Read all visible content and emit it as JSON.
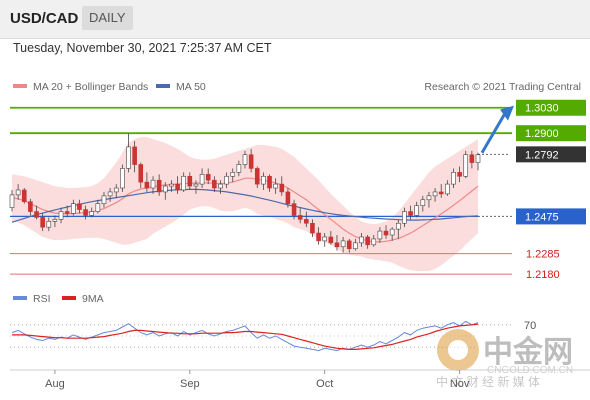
{
  "header": {
    "pair": "USD/CAD",
    "timeframe": "DAILY"
  },
  "timestamp": "Tuesday, November 30, 2021 7:25:37 AM CET",
  "legend": {
    "ma20_label": "MA 20 + Bollinger Bands",
    "ma50_label": "MA 50"
  },
  "copyright": "Research © 2021 Trading Central",
  "rsi_legend": {
    "rsi_label": "RSI",
    "ma_label": "9MA"
  },
  "watermark": {
    "big": "中金网",
    "small": "中 文 财 经 新 媒 体",
    "url": "CNGOLD.COM.CN"
  },
  "colors": {
    "resistance": "#55aa00",
    "pivot": "#2a62cc",
    "support": "#e07070",
    "current": "#333333",
    "candle": "#cc3333",
    "ma20": "#ee8888",
    "band": "#fbd7d7",
    "ma50": "#4a6aaa",
    "rsi": "#6688dd",
    "rsi_ma": "#dd2222",
    "arrow": "#3377cc"
  },
  "chart_data": {
    "type": "candlestick",
    "x_tick_labels": [
      "Aug",
      "Sep",
      "Oct",
      "Nov"
    ],
    "ylim": [
      1.214,
      1.309
    ],
    "levels": [
      {
        "value": 1.303,
        "label": "1.3030",
        "kind": "resistance"
      },
      {
        "value": 1.29,
        "label": "1.2900",
        "kind": "resistance"
      },
      {
        "value": 1.2792,
        "label": "1.2792",
        "kind": "current"
      },
      {
        "value": 1.2475,
        "label": "1.2475",
        "kind": "pivot"
      },
      {
        "value": 1.2285,
        "label": "1.2285",
        "kind": "support"
      },
      {
        "value": 1.218,
        "label": "1.2180",
        "kind": "support"
      }
    ],
    "ohlc": [
      [
        1.252,
        1.261,
        1.25,
        1.2585
      ],
      [
        1.2585,
        1.264,
        1.256,
        1.261
      ],
      [
        1.261,
        1.262,
        1.254,
        1.255
      ],
      [
        1.255,
        1.2565,
        1.248,
        1.25
      ],
      [
        1.25,
        1.253,
        1.246,
        1.247
      ],
      [
        1.247,
        1.249,
        1.24,
        1.242
      ],
      [
        1.242,
        1.247,
        1.24,
        1.245
      ],
      [
        1.245,
        1.248,
        1.242,
        1.246
      ],
      [
        1.246,
        1.252,
        1.244,
        1.25
      ],
      [
        1.25,
        1.253,
        1.247,
        1.249
      ],
      [
        1.249,
        1.256,
        1.248,
        1.254
      ],
      [
        1.254,
        1.256,
        1.249,
        1.251
      ],
      [
        1.251,
        1.253,
        1.246,
        1.248
      ],
      [
        1.248,
        1.252,
        1.247,
        1.25
      ],
      [
        1.25,
        1.256,
        1.249,
        1.254
      ],
      [
        1.254,
        1.26,
        1.252,
        1.258
      ],
      [
        1.258,
        1.262,
        1.255,
        1.26
      ],
      [
        1.26,
        1.264,
        1.257,
        1.262
      ],
      [
        1.262,
        1.274,
        1.26,
        1.272
      ],
      [
        1.272,
        1.29,
        1.27,
        1.283
      ],
      [
        1.283,
        1.286,
        1.27,
        1.274
      ],
      [
        1.274,
        1.275,
        1.262,
        1.265
      ],
      [
        1.265,
        1.27,
        1.26,
        1.262
      ],
      [
        1.262,
        1.268,
        1.259,
        1.266
      ],
      [
        1.266,
        1.269,
        1.258,
        1.26
      ],
      [
        1.26,
        1.265,
        1.256,
        1.263
      ],
      [
        1.263,
        1.266,
        1.26,
        1.264
      ],
      [
        1.264,
        1.268,
        1.259,
        1.261
      ],
      [
        1.261,
        1.27,
        1.26,
        1.268
      ],
      [
        1.268,
        1.27,
        1.261,
        1.263
      ],
      [
        1.263,
        1.266,
        1.259,
        1.264
      ],
      [
        1.264,
        1.272,
        1.262,
        1.269
      ],
      [
        1.269,
        1.272,
        1.264,
        1.266
      ],
      [
        1.266,
        1.268,
        1.26,
        1.262
      ],
      [
        1.262,
        1.266,
        1.259,
        1.264
      ],
      [
        1.264,
        1.27,
        1.262,
        1.268
      ],
      [
        1.268,
        1.272,
        1.265,
        1.27
      ],
      [
        1.27,
        1.276,
        1.268,
        1.274
      ],
      [
        1.274,
        1.281,
        1.272,
        1.279
      ],
      [
        1.279,
        1.282,
        1.27,
        1.272
      ],
      [
        1.272,
        1.273,
        1.262,
        1.264
      ],
      [
        1.264,
        1.27,
        1.261,
        1.268
      ],
      [
        1.268,
        1.269,
        1.26,
        1.262
      ],
      [
        1.262,
        1.267,
        1.259,
        1.264
      ],
      [
        1.264,
        1.268,
        1.258,
        1.26
      ],
      [
        1.26,
        1.262,
        1.252,
        1.254
      ],
      [
        1.254,
        1.256,
        1.246,
        1.248
      ],
      [
        1.248,
        1.252,
        1.244,
        1.246
      ],
      [
        1.246,
        1.25,
        1.242,
        1.244
      ],
      [
        1.244,
        1.246,
        1.237,
        1.239
      ],
      [
        1.239,
        1.242,
        1.233,
        1.235
      ],
      [
        1.235,
        1.239,
        1.232,
        1.237
      ],
      [
        1.237,
        1.24,
        1.233,
        1.234
      ],
      [
        1.234,
        1.238,
        1.23,
        1.232
      ],
      [
        1.232,
        1.237,
        1.229,
        1.235
      ],
      [
        1.235,
        1.236,
        1.229,
        1.231
      ],
      [
        1.231,
        1.236,
        1.23,
        1.234
      ],
      [
        1.234,
        1.239,
        1.232,
        1.237
      ],
      [
        1.237,
        1.238,
        1.231,
        1.233
      ],
      [
        1.233,
        1.238,
        1.232,
        1.236
      ],
      [
        1.236,
        1.242,
        1.234,
        1.24
      ],
      [
        1.24,
        1.243,
        1.236,
        1.238
      ],
      [
        1.238,
        1.242,
        1.235,
        1.241
      ],
      [
        1.241,
        1.246,
        1.236,
        1.244
      ],
      [
        1.244,
        1.252,
        1.242,
        1.25
      ],
      [
        1.25,
        1.253,
        1.246,
        1.248
      ],
      [
        1.248,
        1.255,
        1.247,
        1.253
      ],
      [
        1.253,
        1.258,
        1.25,
        1.256
      ],
      [
        1.256,
        1.26,
        1.252,
        1.258
      ],
      [
        1.258,
        1.262,
        1.255,
        1.26
      ],
      [
        1.26,
        1.264,
        1.257,
        1.259
      ],
      [
        1.259,
        1.266,
        1.258,
        1.264
      ],
      [
        1.264,
        1.272,
        1.262,
        1.27
      ],
      [
        1.27,
        1.273,
        1.265,
        1.268
      ],
      [
        1.268,
        1.281,
        1.267,
        1.279
      ],
      [
        1.279,
        1.281,
        1.272,
        1.275
      ],
      [
        1.275,
        1.28,
        1.271,
        1.279
      ]
    ],
    "ma20": [
      1.257,
      1.2565,
      1.2555,
      1.254,
      1.2525,
      1.251,
      1.25,
      1.2492,
      1.249,
      1.2488,
      1.249,
      1.2492,
      1.2495,
      1.2498,
      1.2505,
      1.2515,
      1.253,
      1.2545,
      1.2565,
      1.259,
      1.2605,
      1.2615,
      1.262,
      1.2628,
      1.2632,
      1.2636,
      1.2638,
      1.264,
      1.2642,
      1.2645,
      1.2645,
      1.2646,
      1.2646,
      1.2644,
      1.2642,
      1.2645,
      1.265,
      1.266,
      1.267,
      1.267,
      1.2664,
      1.266,
      1.2654,
      1.2646,
      1.2636,
      1.262,
      1.26,
      1.258,
      1.256,
      1.2535,
      1.251,
      1.2485,
      1.246,
      1.2435,
      1.241,
      1.239,
      1.2372,
      1.236,
      1.235,
      1.2345,
      1.2345,
      1.2348,
      1.2354,
      1.2362,
      1.2375,
      1.239,
      1.2408,
      1.2428,
      1.2448,
      1.2468,
      1.2488,
      1.251,
      1.2532,
      1.2555,
      1.258,
      1.2605,
      1.263
    ],
    "bb_upper": [
      1.269,
      1.2685,
      1.268,
      1.267,
      1.266,
      1.265,
      1.264,
      1.263,
      1.2625,
      1.262,
      1.262,
      1.2622,
      1.2625,
      1.263,
      1.2645,
      1.267,
      1.271,
      1.275,
      1.28,
      1.285,
      1.287,
      1.288,
      1.288,
      1.287,
      1.286,
      1.285,
      1.2835,
      1.282,
      1.28,
      1.278,
      1.277,
      1.2765,
      1.2765,
      1.277,
      1.278,
      1.279,
      1.28,
      1.281,
      1.282,
      1.283,
      1.284,
      1.284,
      1.2835,
      1.283,
      1.282,
      1.28,
      1.278,
      1.275,
      1.272,
      1.269,
      1.266,
      1.2625,
      1.259,
      1.256,
      1.253,
      1.25,
      1.247,
      1.245,
      1.244,
      1.2435,
      1.244,
      1.245,
      1.247,
      1.25,
      1.254,
      1.258,
      1.262,
      1.266,
      1.27,
      1.273,
      1.275,
      1.277,
      1.279,
      1.281,
      1.283,
      1.285,
      1.287
    ],
    "bb_lower": [
      1.245,
      1.2445,
      1.243,
      1.241,
      1.239,
      1.237,
      1.236,
      1.2354,
      1.2355,
      1.2356,
      1.236,
      1.2362,
      1.2365,
      1.2366,
      1.2365,
      1.236,
      1.235,
      1.234,
      1.233,
      1.233,
      1.234,
      1.235,
      1.236,
      1.2386,
      1.2404,
      1.2422,
      1.2441,
      1.246,
      1.2484,
      1.251,
      1.252,
      1.2527,
      1.2527,
      1.2518,
      1.2504,
      1.25,
      1.25,
      1.251,
      1.252,
      1.251,
      1.2488,
      1.248,
      1.2473,
      1.2462,
      1.2452,
      1.244,
      1.242,
      1.241,
      1.24,
      1.238,
      1.236,
      1.2345,
      1.233,
      1.231,
      1.229,
      1.228,
      1.2274,
      1.227,
      1.226,
      1.2255,
      1.225,
      1.2246,
      1.2238,
      1.2224,
      1.221,
      1.22,
      1.2196,
      1.2196,
      1.2196,
      1.2206,
      1.2226,
      1.225,
      1.2274,
      1.23,
      1.233,
      1.236,
      1.239
    ],
    "ma50": [
      1.2445,
      1.2455,
      1.2465,
      1.2475,
      1.2484,
      1.2492,
      1.25,
      1.2508,
      1.2516,
      1.2523,
      1.253,
      1.2537,
      1.2544,
      1.255,
      1.2556,
      1.2561,
      1.2566,
      1.2571,
      1.2576,
      1.2581,
      1.2586,
      1.2591,
      1.2596,
      1.26,
      1.2604,
      1.2607,
      1.2609,
      1.2611,
      1.2612,
      1.2613,
      1.2613,
      1.2612,
      1.261,
      1.2607,
      1.2604,
      1.26,
      1.2595,
      1.259,
      1.2585,
      1.2579,
      1.2572,
      1.2565,
      1.2558,
      1.255,
      1.2542,
      1.2534,
      1.2527,
      1.252,
      1.2513,
      1.2506,
      1.25,
      1.2494,
      1.2489,
      1.2484,
      1.248,
      1.2477,
      1.2474,
      1.2471,
      1.2468,
      1.2466,
      1.2464,
      1.2462,
      1.246,
      1.2458,
      1.2457,
      1.2456,
      1.2456,
      1.2457,
      1.2458,
      1.246,
      1.2462,
      1.2465,
      1.2468,
      1.2471,
      1.2474,
      1.2476,
      1.2478
    ],
    "rsi": {
      "ylim": [
        0,
        100
      ],
      "level_label": "70",
      "rsi": [
        56,
        60,
        54,
        48,
        44,
        42,
        46,
        44,
        48,
        46,
        52,
        48,
        44,
        48,
        52,
        56,
        58,
        60,
        66,
        72,
        64,
        56,
        52,
        56,
        50,
        54,
        56,
        50,
        58,
        52,
        56,
        60,
        54,
        50,
        54,
        58,
        60,
        64,
        68,
        56,
        46,
        52,
        46,
        50,
        44,
        38,
        32,
        30,
        28,
        26,
        24,
        28,
        26,
        24,
        28,
        26,
        30,
        34,
        30,
        34,
        40,
        36,
        42,
        48,
        56,
        52,
        60,
        64,
        66,
        68,
        64,
        70,
        74,
        68,
        76,
        70,
        74
      ],
      "ma9": [
        52,
        52,
        52,
        51,
        50,
        49,
        48,
        47,
        47,
        46,
        46,
        46,
        46,
        47,
        48,
        49,
        51,
        53,
        55,
        58,
        60,
        60,
        59,
        58,
        57,
        56,
        55,
        55,
        54,
        54,
        54,
        55,
        55,
        55,
        55,
        56,
        56,
        57,
        58,
        58,
        57,
        56,
        55,
        54,
        53,
        50,
        47,
        44,
        41,
        38,
        35,
        32,
        30,
        28,
        27,
        26,
        26,
        27,
        28,
        29,
        31,
        33,
        35,
        38,
        41,
        44,
        48,
        51,
        54,
        58,
        61,
        64,
        66,
        68,
        69,
        70,
        71
      ]
    }
  }
}
